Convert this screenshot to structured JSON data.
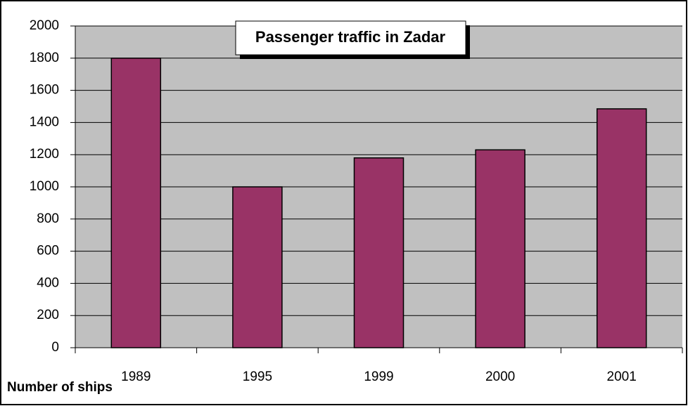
{
  "chart_data": {
    "type": "bar",
    "title": "Passenger traffic in Zadar",
    "y_label": "Number of ships",
    "categories": [
      "1989",
      "1995",
      "1999",
      "2000",
      "2001"
    ],
    "values": [
      1800,
      1000,
      1180,
      1230,
      1485
    ],
    "color": "#993366",
    "ylim": [
      0,
      2000
    ],
    "yticks": [
      0,
      200,
      400,
      600,
      800,
      1000,
      1200,
      1400,
      1600,
      1800,
      2000
    ],
    "grid": true
  }
}
